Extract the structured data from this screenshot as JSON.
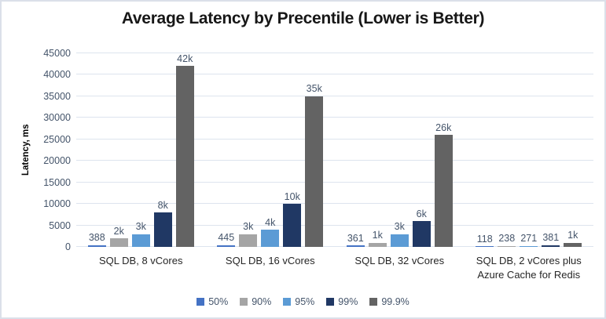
{
  "chart_data": {
    "type": "bar",
    "title": "Average Latency by Precentile (Lower is Better)",
    "xlabel": "",
    "ylabel": "Latency, ms",
    "ylim": [
      0,
      45000
    ],
    "ytick_step": 5000,
    "grid": true,
    "legend_position": "bottom",
    "categories": [
      "SQL DB, 8 vCores",
      "SQL DB, 16 vCores",
      "SQL DB, 32 vCores",
      "SQL DB, 2 vCores plus Azure Cache for Redis"
    ],
    "series": [
      {
        "name": "50%",
        "color": "#4472C4",
        "values": [
          388,
          445,
          361,
          118
        ],
        "labels": [
          "388",
          "445",
          "361",
          "118"
        ]
      },
      {
        "name": "90%",
        "color": "#A5A5A5",
        "values": [
          2000,
          3000,
          1000,
          238
        ],
        "labels": [
          "2k",
          "3k",
          "1k",
          "238"
        ]
      },
      {
        "name": "95%",
        "color": "#5B9BD5",
        "values": [
          3000,
          4000,
          3000,
          271
        ],
        "labels": [
          "3k",
          "4k",
          "3k",
          "271"
        ]
      },
      {
        "name": "99%",
        "color": "#203864",
        "values": [
          8000,
          10000,
          6000,
          381
        ],
        "labels": [
          "8k",
          "10k",
          "6k",
          "381"
        ]
      },
      {
        "name": "99.9%",
        "color": "#636363",
        "values": [
          42000,
          35000,
          26000,
          1000
        ],
        "labels": [
          "42k",
          "35k",
          "26k",
          "1k"
        ]
      }
    ]
  }
}
